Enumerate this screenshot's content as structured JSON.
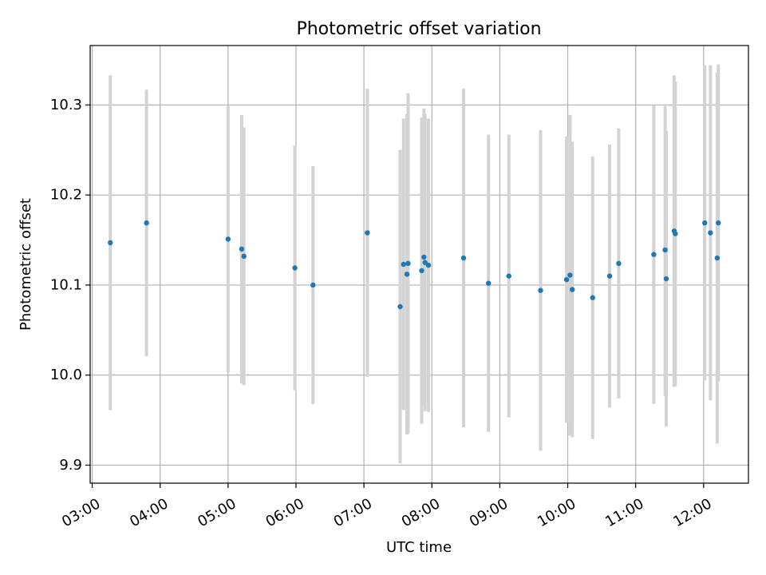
{
  "chart_data": {
    "type": "scatter",
    "title": "Photometric offset variation",
    "xlabel": "UTC time",
    "ylabel": "Photometric offset",
    "x_tick_labels": [
      "03:00",
      "04:00",
      "05:00",
      "06:00",
      "07:00",
      "08:00",
      "09:00",
      "10:00",
      "11:00",
      "12:00"
    ],
    "y_tick_labels": [
      "9.9",
      "10.0",
      "10.1",
      "10.2",
      "10.3"
    ],
    "x_ticks_hours": [
      3,
      4,
      5,
      6,
      7,
      8,
      9,
      10,
      11,
      12
    ],
    "y_ticks": [
      9.9,
      10.0,
      10.1,
      10.2,
      10.3
    ],
    "xlim_hours": [
      2.97,
      12.66
    ],
    "ylim": [
      9.88,
      10.366
    ],
    "grid": true,
    "colors": {
      "point": "#1f77b4",
      "errorbar": "#d3d3d3",
      "grid": "#b0b0b0"
    },
    "series": [
      {
        "points": [
          {
            "t": "03:16",
            "y": 10.147,
            "err": 0.186
          },
          {
            "t": "03:48",
            "y": 10.169,
            "err": 0.148
          },
          {
            "t": "05:00",
            "y": 10.151,
            "err": 0.148
          },
          {
            "t": "05:12",
            "y": 10.14,
            "err": 0.149
          },
          {
            "t": "05:14",
            "y": 10.132,
            "err": 0.143
          },
          {
            "t": "05:59",
            "y": 10.119,
            "err": 0.136
          },
          {
            "t": "06:15",
            "y": 10.1,
            "err": 0.132
          },
          {
            "t": "07:03",
            "y": 10.158,
            "err": 0.16
          },
          {
            "t": "07:32",
            "y": 10.076,
            "err": 0.174
          },
          {
            "t": "07:35",
            "y": 10.123,
            "err": 0.162
          },
          {
            "t": "07:38",
            "y": 10.112,
            "err": 0.178
          },
          {
            "t": "07:39",
            "y": 10.124,
            "err": 0.189
          },
          {
            "t": "07:51",
            "y": 10.116,
            "err": 0.17
          },
          {
            "t": "07:53",
            "y": 10.131,
            "err": 0.165
          },
          {
            "t": "07:54",
            "y": 10.125,
            "err": 0.165
          },
          {
            "t": "07:57",
            "y": 10.122,
            "err": 0.163
          },
          {
            "t": "08:28",
            "y": 10.13,
            "err": 0.188
          },
          {
            "t": "08:50",
            "y": 10.102,
            "err": 0.165
          },
          {
            "t": "09:08",
            "y": 10.11,
            "err": 0.157
          },
          {
            "t": "09:36",
            "y": 10.094,
            "err": 0.178
          },
          {
            "t": "09:59",
            "y": 10.106,
            "err": 0.159
          },
          {
            "t": "10:02",
            "y": 10.111,
            "err": 0.178
          },
          {
            "t": "10:04",
            "y": 10.095,
            "err": 0.164
          },
          {
            "t": "10:22",
            "y": 10.086,
            "err": 0.157
          },
          {
            "t": "10:37",
            "y": 10.11,
            "err": 0.146
          },
          {
            "t": "10:45",
            "y": 10.124,
            "err": 0.15
          },
          {
            "t": "11:16",
            "y": 10.134,
            "err": 0.166
          },
          {
            "t": "11:26",
            "y": 10.139,
            "err": 0.162
          },
          {
            "t": "11:27",
            "y": 10.107,
            "err": 0.164
          },
          {
            "t": "11:34",
            "y": 10.16,
            "err": 0.173
          },
          {
            "t": "11:35",
            "y": 10.157,
            "err": 0.169
          },
          {
            "t": "12:01",
            "y": 10.169,
            "err": 0.175
          },
          {
            "t": "12:06",
            "y": 10.158,
            "err": 0.186
          },
          {
            "t": "12:12",
            "y": 10.13,
            "err": 0.206
          },
          {
            "t": "12:13",
            "y": 10.169,
            "err": 0.176
          }
        ]
      }
    ]
  }
}
